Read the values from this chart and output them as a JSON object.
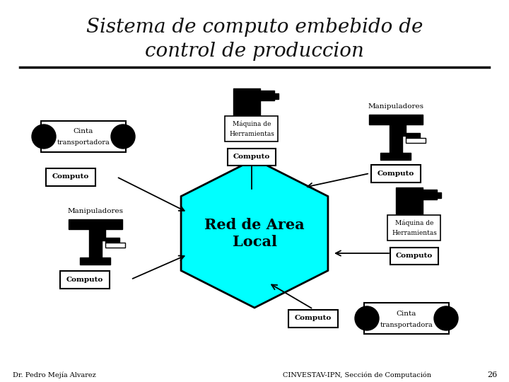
{
  "title_line1": "Sistema de computo embebido de",
  "title_line2": "control de produccion",
  "title_fontsize": 20,
  "bg_color": "#ffffff",
  "hex_color": "#00ffff",
  "footer_left": "Dr. Pedro Mejía Alvarez",
  "footer_right": "CINVESTAV-IPN, Sección de Computación",
  "footer_page": "26"
}
